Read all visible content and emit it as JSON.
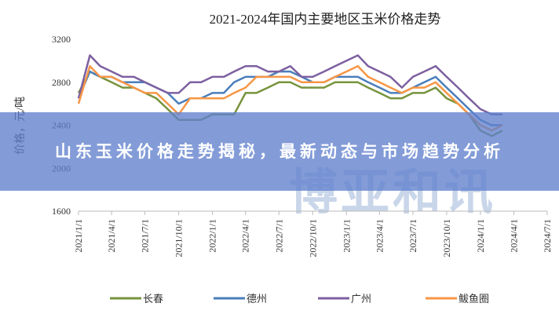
{
  "chart_data": {
    "type": "line",
    "title": "2021-2024年国内主要地区玉米价格走势",
    "ylabel": "价格，元/吨",
    "watermark": "博亚和讯",
    "x": [
      "2021/1/1",
      "2021/2/1",
      "2021/3/1",
      "2021/4/1",
      "2021/5/1",
      "2021/6/1",
      "2021/7/1",
      "2021/8/1",
      "2021/9/1",
      "2021/10/1",
      "2021/11/1",
      "2021/12/1",
      "2022/1/1",
      "2022/2/1",
      "2022/3/1",
      "2022/4/1",
      "2022/5/1",
      "2022/6/1",
      "2022/7/1",
      "2022/8/1",
      "2022/9/1",
      "2022/10/1",
      "2022/11/1",
      "2022/12/1",
      "2023/1/1",
      "2023/2/1",
      "2023/3/1",
      "2023/4/1",
      "2023/5/1",
      "2023/6/1",
      "2023/7/1",
      "2023/8/1",
      "2023/9/1",
      "2023/10/1",
      "2023/11/1",
      "2023/12/1",
      "2024/1/1",
      "2024/2/1",
      "2024/3/1"
    ],
    "series": [
      {
        "name": "长春",
        "color": "#77933c",
        "values": [
          2700,
          2900,
          2850,
          2800,
          2750,
          2750,
          2700,
          2650,
          2550,
          2450,
          2450,
          2450,
          2500,
          2500,
          2500,
          2700,
          2700,
          2750,
          2800,
          2800,
          2750,
          2750,
          2750,
          2800,
          2800,
          2800,
          2750,
          2700,
          2650,
          2650,
          2700,
          2700,
          2750,
          2650,
          2600,
          2500,
          2350,
          2300,
          2350
        ]
      },
      {
        "name": "德州",
        "color": "#4a7ebb",
        "values": [
          2650,
          2900,
          2850,
          2850,
          2800,
          2800,
          2800,
          2750,
          2700,
          2600,
          2650,
          2650,
          2700,
          2700,
          2800,
          2850,
          2850,
          2850,
          2900,
          2900,
          2850,
          2800,
          2800,
          2850,
          2850,
          2850,
          2800,
          2750,
          2700,
          2700,
          2750,
          2800,
          2850,
          2750,
          2650,
          2550,
          2450,
          2400,
          2400
        ]
      },
      {
        "name": "广州",
        "color": "#7d60a0",
        "values": [
          2650,
          3050,
          2950,
          2900,
          2850,
          2850,
          2800,
          2750,
          2700,
          2700,
          2800,
          2800,
          2850,
          2850,
          2900,
          2950,
          2950,
          2900,
          2900,
          2950,
          2850,
          2850,
          2900,
          2950,
          3000,
          3050,
          2950,
          2900,
          2850,
          2750,
          2850,
          2900,
          2950,
          2850,
          2750,
          2650,
          2550,
          2500,
          2500
        ]
      },
      {
        "name": "鲅鱼圈",
        "color": "#f79646",
        "values": [
          2600,
          2950,
          2850,
          2850,
          2800,
          2750,
          2700,
          2700,
          2600,
          2500,
          2650,
          2650,
          2650,
          2650,
          2700,
          2750,
          2850,
          2850,
          2850,
          2850,
          2800,
          2800,
          2800,
          2850,
          2900,
          2950,
          2850,
          2800,
          2750,
          2700,
          2750,
          2750,
          2800,
          2700,
          2600,
          2500,
          2400,
          2350,
          2400
        ]
      }
    ],
    "xlim": [
      "2021/1/1",
      "2024/7/1"
    ],
    "xticks": [
      "2021/1/1",
      "2021/4/1",
      "2021/7/1",
      "2021/10/1",
      "2022/1/1",
      "2022/4/1",
      "2022/7/1",
      "2022/10/1",
      "2023/1/1",
      "2023/4/1",
      "2023/7/1",
      "2023/10/1",
      "2024/1/1",
      "2024/4/1",
      "2024/7/1"
    ],
    "ylim": [
      1600,
      3200
    ],
    "yticks": [
      1600,
      2000,
      2400,
      2800,
      3200
    ],
    "grid": false,
    "legend": "bottom"
  },
  "banner": {
    "text": "山东玉米价格走势揭秘，最新动态与市场趋势分析"
  }
}
